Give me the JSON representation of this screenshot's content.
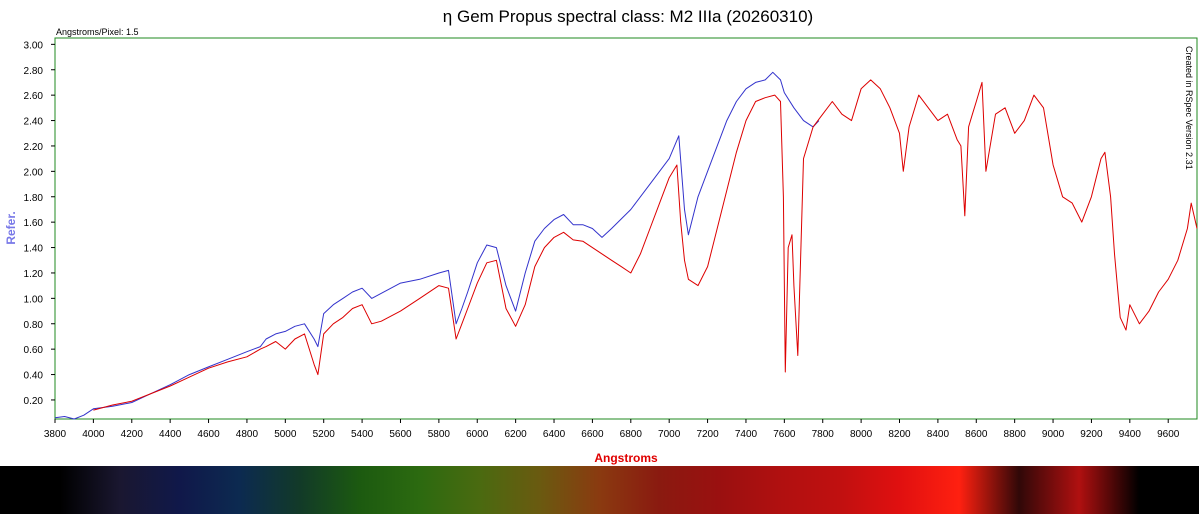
{
  "chart_data": {
    "type": "line",
    "title": "η Gem Propus spectral class: M2 IIIa (20260310)",
    "corner_note": "Angstroms/Pixel: 1.5",
    "side_note": "Created in RSpec Version 2.31",
    "xlabel": "Angstroms",
    "ylabel": "Refer.",
    "xlim": [
      3800,
      9750
    ],
    "ylim": [
      0.05,
      3.05
    ],
    "x_ticks": [
      3800,
      4000,
      4200,
      4400,
      4600,
      4800,
      5000,
      5200,
      5400,
      5600,
      5800,
      6000,
      6200,
      6400,
      6600,
      6800,
      7000,
      7200,
      7400,
      7600,
      7800,
      8000,
      8200,
      8400,
      8600,
      8800,
      9000,
      9200,
      9400,
      9600
    ],
    "y_ticks": [
      0.2,
      0.4,
      0.6,
      0.8,
      1.0,
      1.2,
      1.4,
      1.6,
      1.8,
      2.0,
      2.2,
      2.4,
      2.6,
      2.8,
      3.0
    ],
    "y_tick_labels": [
      "0.20",
      "0.40",
      "0.60",
      "0.80",
      "1.00",
      "1.20",
      "1.40",
      "1.60",
      "1.80",
      "2.00",
      "2.20",
      "2.40",
      "2.60",
      "2.80",
      "3.00"
    ],
    "grid": false,
    "series": [
      {
        "color": "#3333cc",
        "x": [
          3800,
          3850,
          3900,
          3950,
          4000,
          4100,
          4200,
          4300,
          4400,
          4500,
          4600,
          4700,
          4800,
          4870,
          4900,
          4950,
          5000,
          5050,
          5100,
          5150,
          5170,
          5200,
          5250,
          5300,
          5350,
          5400,
          5450,
          5500,
          5600,
          5700,
          5800,
          5850,
          5890,
          5920,
          5950,
          6000,
          6050,
          6100,
          6150,
          6200,
          6250,
          6300,
          6350,
          6400,
          6450,
          6500,
          6550,
          6600,
          6650,
          6700,
          6800,
          6900,
          7000,
          7050,
          7080,
          7100,
          7150,
          7200,
          7250,
          7300,
          7350,
          7400,
          7450,
          7500,
          7540,
          7580,
          7600,
          7650,
          7700,
          7750,
          7780
        ],
        "y": [
          0.06,
          0.07,
          0.05,
          0.08,
          0.13,
          0.15,
          0.18,
          0.25,
          0.32,
          0.4,
          0.46,
          0.52,
          0.58,
          0.62,
          0.68,
          0.72,
          0.74,
          0.78,
          0.8,
          0.68,
          0.62,
          0.88,
          0.95,
          1.0,
          1.05,
          1.08,
          1.0,
          1.04,
          1.12,
          1.15,
          1.2,
          1.22,
          0.8,
          0.92,
          1.05,
          1.28,
          1.42,
          1.4,
          1.1,
          0.9,
          1.2,
          1.45,
          1.55,
          1.62,
          1.66,
          1.58,
          1.58,
          1.55,
          1.48,
          1.55,
          1.7,
          1.9,
          2.1,
          2.28,
          1.7,
          1.5,
          1.8,
          2.0,
          2.2,
          2.4,
          2.55,
          2.65,
          2.7,
          2.72,
          2.78,
          2.72,
          2.62,
          2.5,
          2.4,
          2.35,
          2.4
        ]
      },
      {
        "color": "#dd0000",
        "x": [
          4000,
          4100,
          4200,
          4300,
          4400,
          4500,
          4600,
          4700,
          4800,
          4870,
          4900,
          4950,
          5000,
          5050,
          5100,
          5150,
          5170,
          5200,
          5250,
          5300,
          5350,
          5400,
          5450,
          5500,
          5600,
          5700,
          5800,
          5850,
          5890,
          5920,
          5950,
          6000,
          6050,
          6100,
          6150,
          6200,
          6250,
          6300,
          6350,
          6400,
          6450,
          6500,
          6550,
          6600,
          6650,
          6700,
          6750,
          6800,
          6850,
          6900,
          6950,
          7000,
          7040,
          7060,
          7080,
          7100,
          7150,
          7200,
          7250,
          7300,
          7350,
          7400,
          7450,
          7500,
          7550,
          7580,
          7595,
          7605,
          7620,
          7640,
          7650,
          7670,
          7700,
          7750,
          7800,
          7850,
          7900,
          7950,
          8000,
          8050,
          8100,
          8150,
          8200,
          8220,
          8250,
          8300,
          8350,
          8400,
          8450,
          8500,
          8520,
          8540,
          8560,
          8580,
          8600,
          8630,
          8650,
          8700,
          8750,
          8800,
          8850,
          8900,
          8950,
          9000,
          9050,
          9100,
          9150,
          9200,
          9250,
          9270,
          9300,
          9320,
          9350,
          9380,
          9400,
          9450,
          9500,
          9550,
          9600,
          9650,
          9700,
          9720,
          9750
        ],
        "y": [
          0.12,
          0.16,
          0.19,
          0.25,
          0.31,
          0.38,
          0.45,
          0.5,
          0.54,
          0.6,
          0.62,
          0.66,
          0.6,
          0.68,
          0.72,
          0.48,
          0.4,
          0.72,
          0.8,
          0.85,
          0.92,
          0.95,
          0.8,
          0.82,
          0.9,
          1.0,
          1.1,
          1.08,
          0.68,
          0.8,
          0.92,
          1.12,
          1.28,
          1.3,
          0.92,
          0.78,
          0.95,
          1.25,
          1.4,
          1.48,
          1.52,
          1.46,
          1.45,
          1.4,
          1.35,
          1.3,
          1.25,
          1.2,
          1.35,
          1.55,
          1.75,
          1.95,
          2.05,
          1.6,
          1.3,
          1.15,
          1.1,
          1.25,
          1.55,
          1.85,
          2.15,
          2.4,
          2.55,
          2.58,
          2.6,
          2.55,
          1.8,
          0.42,
          1.4,
          1.5,
          1.1,
          0.55,
          2.1,
          2.35,
          2.45,
          2.55,
          2.45,
          2.4,
          2.65,
          2.72,
          2.65,
          2.5,
          2.3,
          2.0,
          2.35,
          2.6,
          2.5,
          2.4,
          2.45,
          2.25,
          2.2,
          1.65,
          2.35,
          2.45,
          2.55,
          2.7,
          2.0,
          2.45,
          2.5,
          2.3,
          2.4,
          2.6,
          2.5,
          2.05,
          1.8,
          1.75,
          1.6,
          1.8,
          2.1,
          2.15,
          1.8,
          1.35,
          0.85,
          0.75,
          0.95,
          0.8,
          0.9,
          1.05,
          1.15,
          1.3,
          1.55,
          1.75,
          1.55
        ]
      }
    ],
    "strip_colors": [
      "#000000",
      "#000000",
      "#1a1730",
      "#10184a",
      "#0c2a50",
      "#123a28",
      "#1c5a10",
      "#2c6a10",
      "#4a6a10",
      "#6a5a10",
      "#8a3a10",
      "#8a1a10",
      "#9a1010",
      "#b01010",
      "#c01010",
      "#e01010",
      "#ff2010",
      "#300808",
      "#b01010",
      "#000000",
      "#000000"
    ]
  }
}
